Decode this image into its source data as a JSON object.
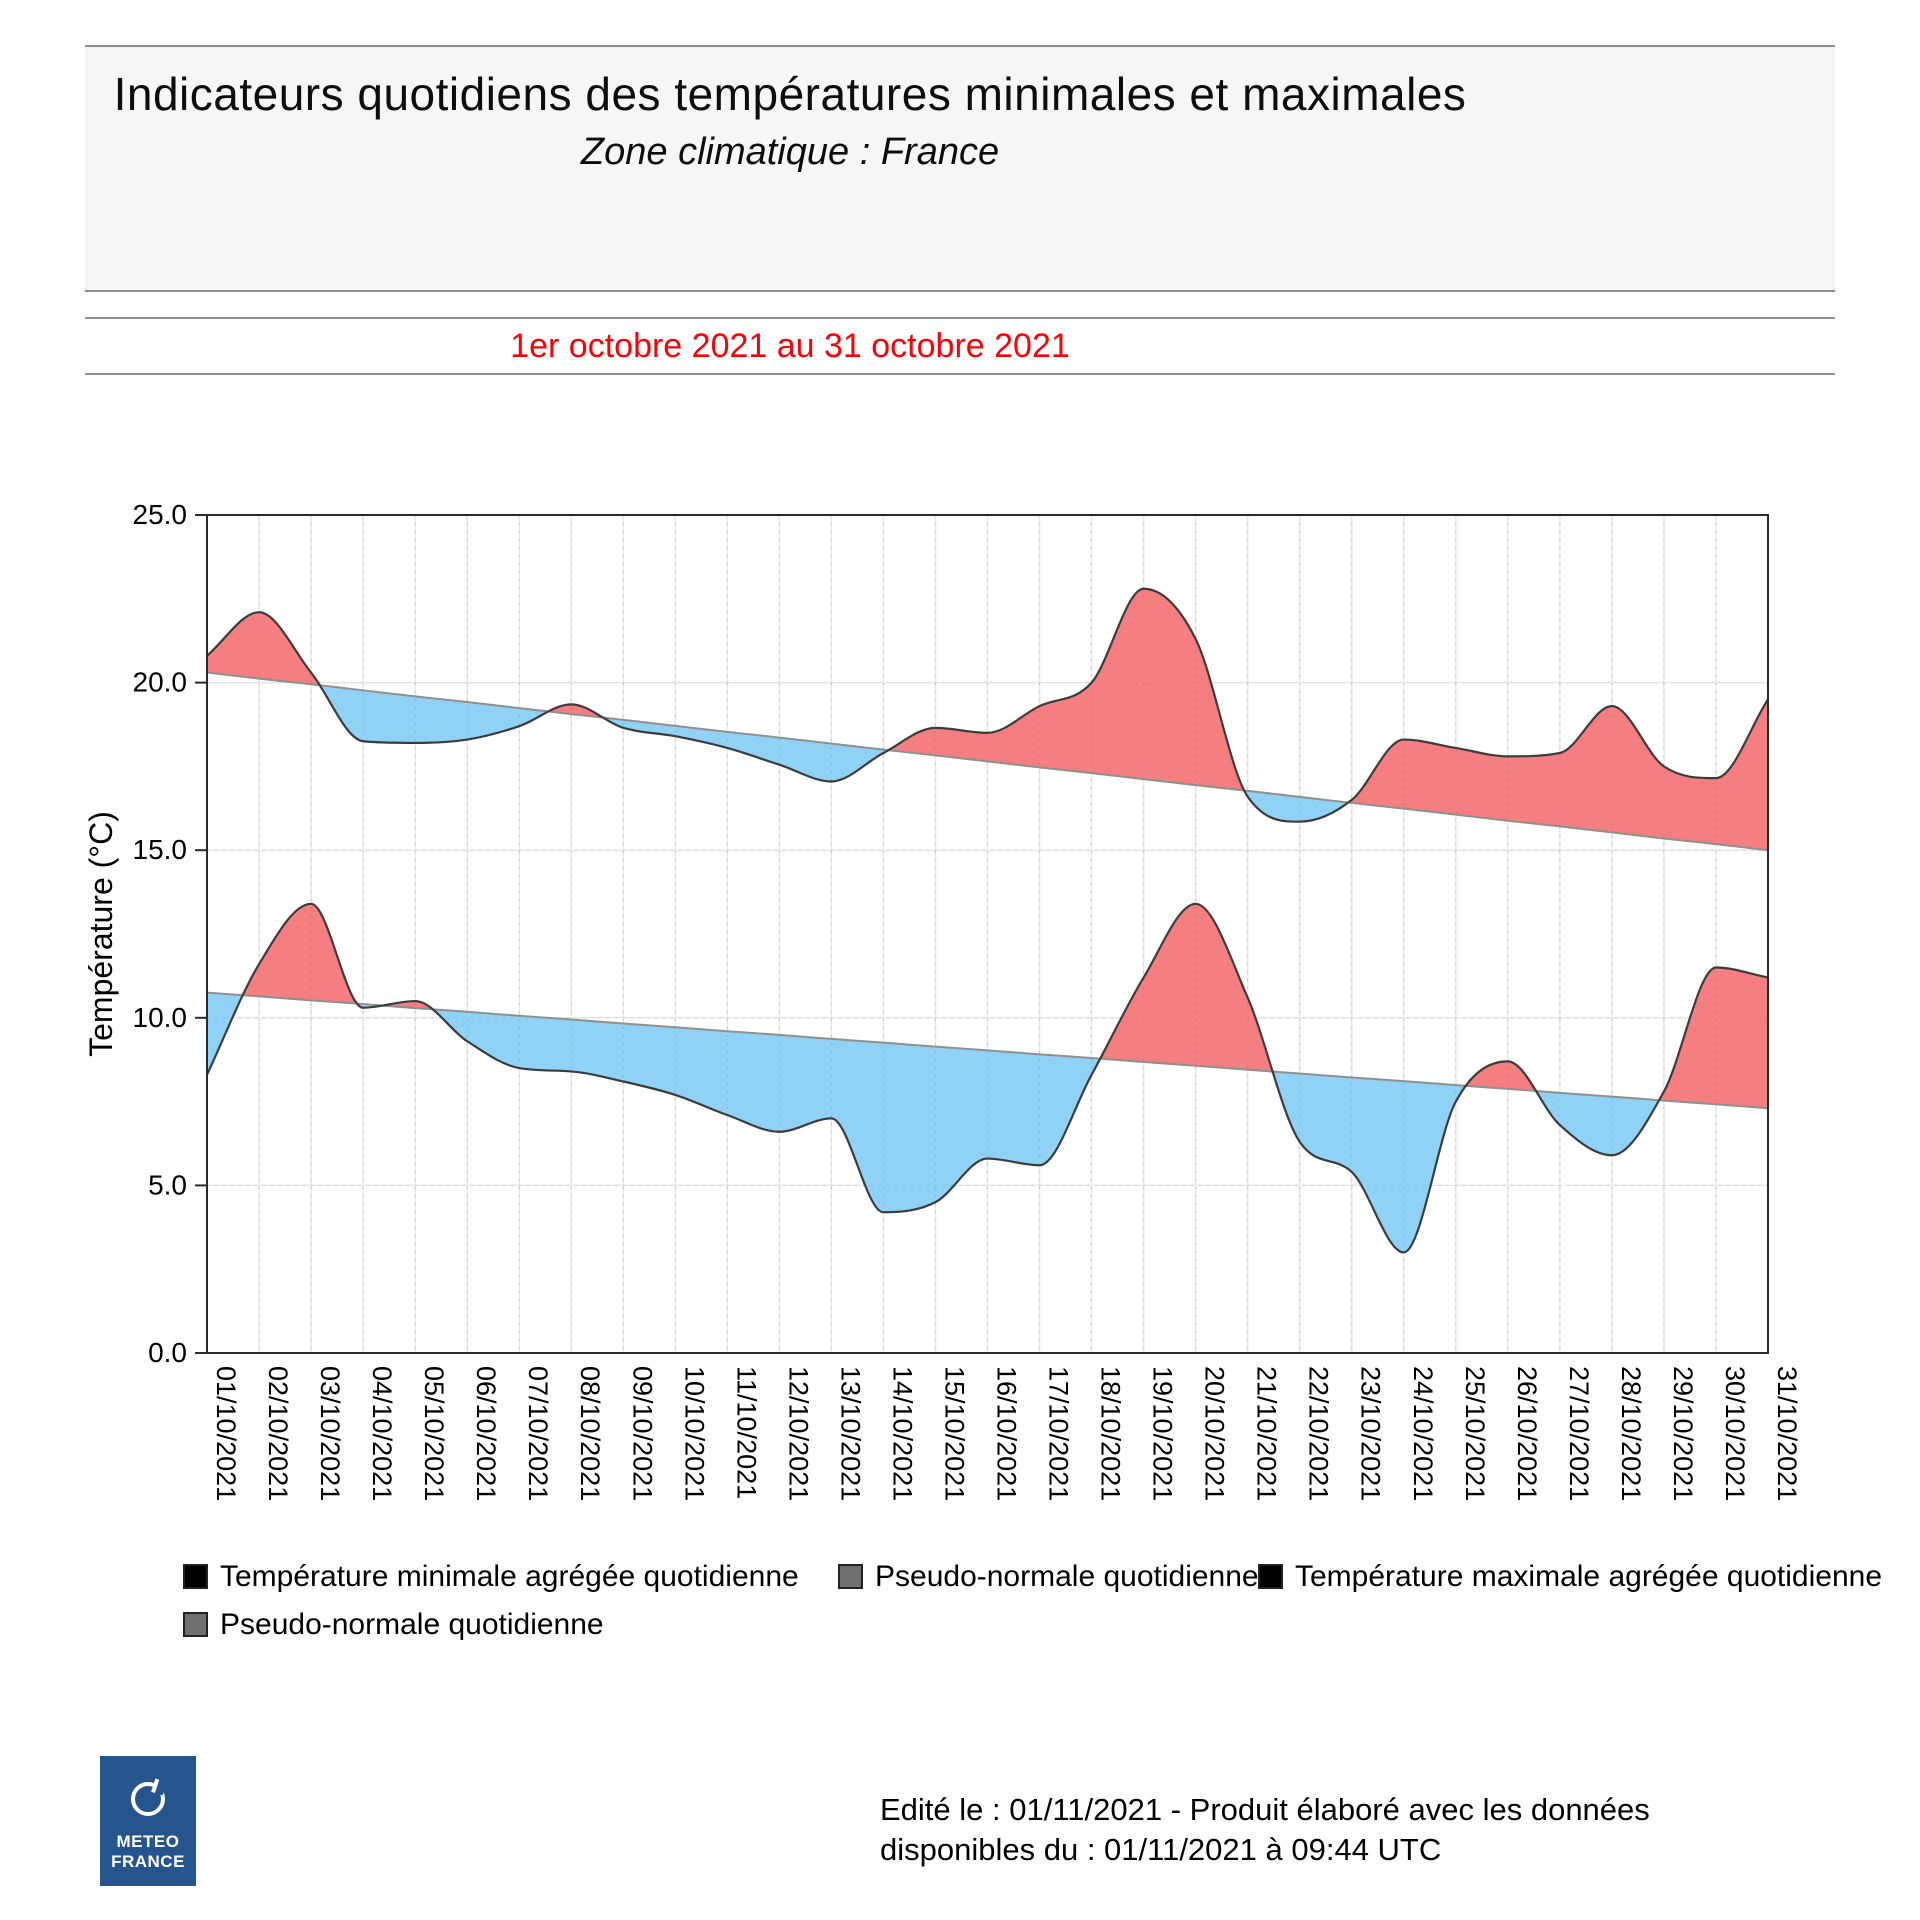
{
  "header": {
    "title": "Indicateurs quotidiens des températures minimales et maximales",
    "subtitle": "Zone climatique : France"
  },
  "period": {
    "label": "1er octobre 2021 au 31 octobre 2021",
    "color": "#fb0006"
  },
  "chart_data": {
    "type": "area",
    "title": "Indicateurs quotidiens des températures minimales et maximales",
    "ylabel": "Température (°C)",
    "ylim": [
      0.0,
      25.0
    ],
    "ytick_labels": [
      "0.0",
      "5.0",
      "10.0",
      "15.0",
      "20.0",
      "25.0"
    ],
    "ytick_values": [
      0,
      5,
      10,
      15,
      20,
      25
    ],
    "grid": true,
    "legend_position": "bottom",
    "x": [
      "01/10/2021",
      "02/10/2021",
      "03/10/2021",
      "04/10/2021",
      "05/10/2021",
      "06/10/2021",
      "07/10/2021",
      "08/10/2021",
      "09/10/2021",
      "10/10/2021",
      "11/10/2021",
      "12/10/2021",
      "13/10/2021",
      "14/10/2021",
      "15/10/2021",
      "16/10/2021",
      "17/10/2021",
      "18/10/2021",
      "19/10/2021",
      "20/10/2021",
      "21/10/2021",
      "22/10/2021",
      "23/10/2021",
      "24/10/2021",
      "25/10/2021",
      "26/10/2021",
      "27/10/2021",
      "28/10/2021",
      "29/10/2021",
      "30/10/2021",
      "31/10/2021"
    ],
    "series": [
      {
        "name": "Température minimale agrégée quotidienne",
        "values": [
          8.3,
          11.6,
          13.4,
          10.3,
          10.5,
          9.3,
          8.5,
          8.4,
          8.1,
          7.7,
          7.1,
          6.6,
          7.0,
          4.2,
          4.5,
          5.8,
          5.6,
          8.3,
          11.2,
          13.4,
          10.6,
          6.3,
          5.4,
          3.0,
          7.5,
          8.7,
          6.8,
          5.9,
          7.8,
          11.5,
          11.2
        ]
      },
      {
        "name": "Pseudo-normale quotidienne",
        "values": [
          10.75,
          10.64,
          10.52,
          10.41,
          10.29,
          10.18,
          10.06,
          9.95,
          9.83,
          9.72,
          9.6,
          9.49,
          9.37,
          9.26,
          9.14,
          9.03,
          8.91,
          8.8,
          8.68,
          8.57,
          8.45,
          8.34,
          8.22,
          8.11,
          7.99,
          7.88,
          7.76,
          7.65,
          7.53,
          7.42,
          7.3
        ]
      },
      {
        "name": "Température maximale agrégée quotidienne",
        "values": [
          20.8,
          22.1,
          20.3,
          18.25,
          18.2,
          18.3,
          18.7,
          19.35,
          18.65,
          18.4,
          18.05,
          17.55,
          17.05,
          17.9,
          18.65,
          18.5,
          19.3,
          20.0,
          22.8,
          21.3,
          16.6,
          15.85,
          16.5,
          18.3,
          18.05,
          17.8,
          17.9,
          19.3,
          17.5,
          17.15,
          19.5
        ]
      },
      {
        "name": "Pseudo-normale quotidienne",
        "values": [
          20.3,
          20.12,
          19.95,
          19.77,
          19.59,
          19.42,
          19.24,
          19.06,
          18.89,
          18.71,
          18.53,
          18.36,
          18.18,
          18.0,
          17.83,
          17.65,
          17.47,
          17.3,
          17.12,
          16.94,
          16.77,
          16.59,
          16.41,
          16.24,
          16.06,
          15.88,
          15.71,
          15.53,
          15.35,
          15.18,
          15.0
        ]
      }
    ],
    "colors": {
      "above_normal_fill": "#f47e80",
      "below_normal_fill": "#8fd2f5",
      "curve_stroke": "#3c3c3c",
      "normal_stroke": "#909090",
      "grid_line": "#e9e9e9",
      "plot_border": "#2a2a2a",
      "tick_text": "#000000"
    }
  },
  "legend": {
    "items": [
      {
        "label": "Température minimale agrégée quotidienne",
        "color": "#000000"
      },
      {
        "label": "Pseudo-normale quotidienne",
        "color": "#707070"
      },
      {
        "label": "Température maximale agrégée quotidienne",
        "color": "#000000"
      },
      {
        "label": "Pseudo-normale quotidienne",
        "color": "#707070"
      }
    ]
  },
  "footer": {
    "logo": {
      "line1": "METEO",
      "line2": "FRANCE",
      "icon": "meteo-france-circle-icon"
    },
    "note_line1": "Edité le : 01/11/2021 - Produit élaboré avec les données",
    "note_line2": "disponibles du : 01/11/2021 à 09:44 UTC"
  }
}
